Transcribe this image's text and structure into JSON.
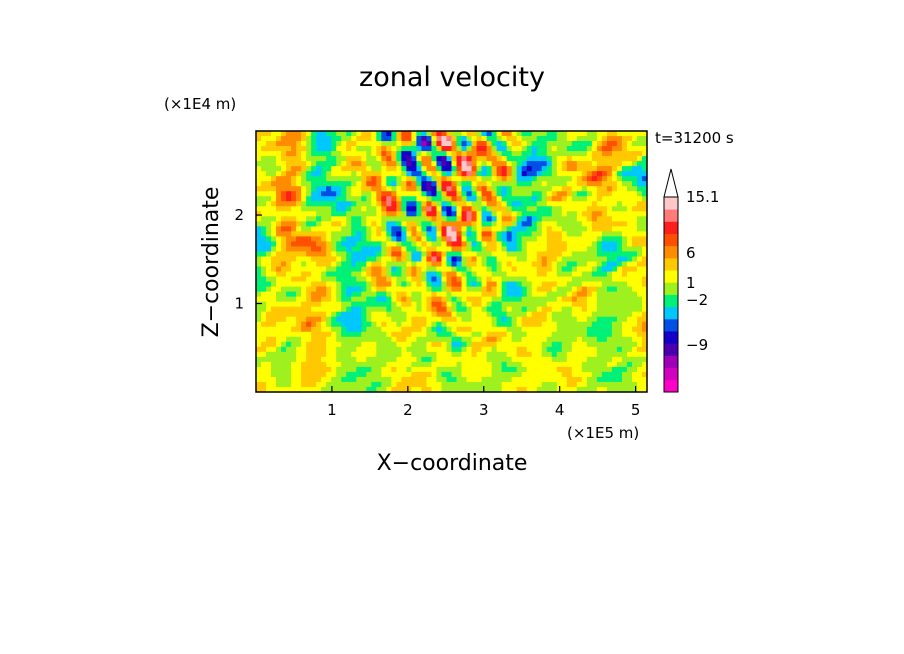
{
  "chart_data": {
    "type": "heatmap",
    "title": "zonal velocity",
    "xlabel": "X−coordinate",
    "ylabel": "Z−coordinate",
    "x_scale_label": "(×1E5 m)",
    "y_scale_label": "(×1E4 m)",
    "time_label": "t=31200 s",
    "xlim": [
      0,
      5.15
    ],
    "ylim": [
      0,
      2.95
    ],
    "x_ticks": [
      1,
      2,
      3,
      4,
      5
    ],
    "y_ticks": [
      1,
      2
    ],
    "x_tick_labels": [
      "1",
      "2",
      "3",
      "4",
      "5"
    ],
    "y_tick_labels": [
      "1",
      "2"
    ],
    "grid": false,
    "colorbar": {
      "position": "right",
      "levels": [
        {
          "color": "#ff00c8"
        },
        {
          "color": "#d400c0"
        },
        {
          "color": "#a000b8"
        },
        {
          "color": "#4b00b0"
        },
        {
          "color": "#1400c8"
        },
        {
          "color": "#0050e6"
        },
        {
          "color": "#00c8ff"
        },
        {
          "color": "#00f078"
        },
        {
          "color": "#9ef01e"
        },
        {
          "color": "#ffff00"
        },
        {
          "color": "#ffc800"
        },
        {
          "color": "#ff8c00"
        },
        {
          "color": "#ff5000"
        },
        {
          "color": "#ff1e1e"
        },
        {
          "color": "#ff7a7a"
        },
        {
          "color": "#ffc8c8"
        }
      ],
      "tick_labels": [
        "15.1",
        "6",
        "1",
        "−2",
        "−9"
      ],
      "extend": "max"
    }
  }
}
